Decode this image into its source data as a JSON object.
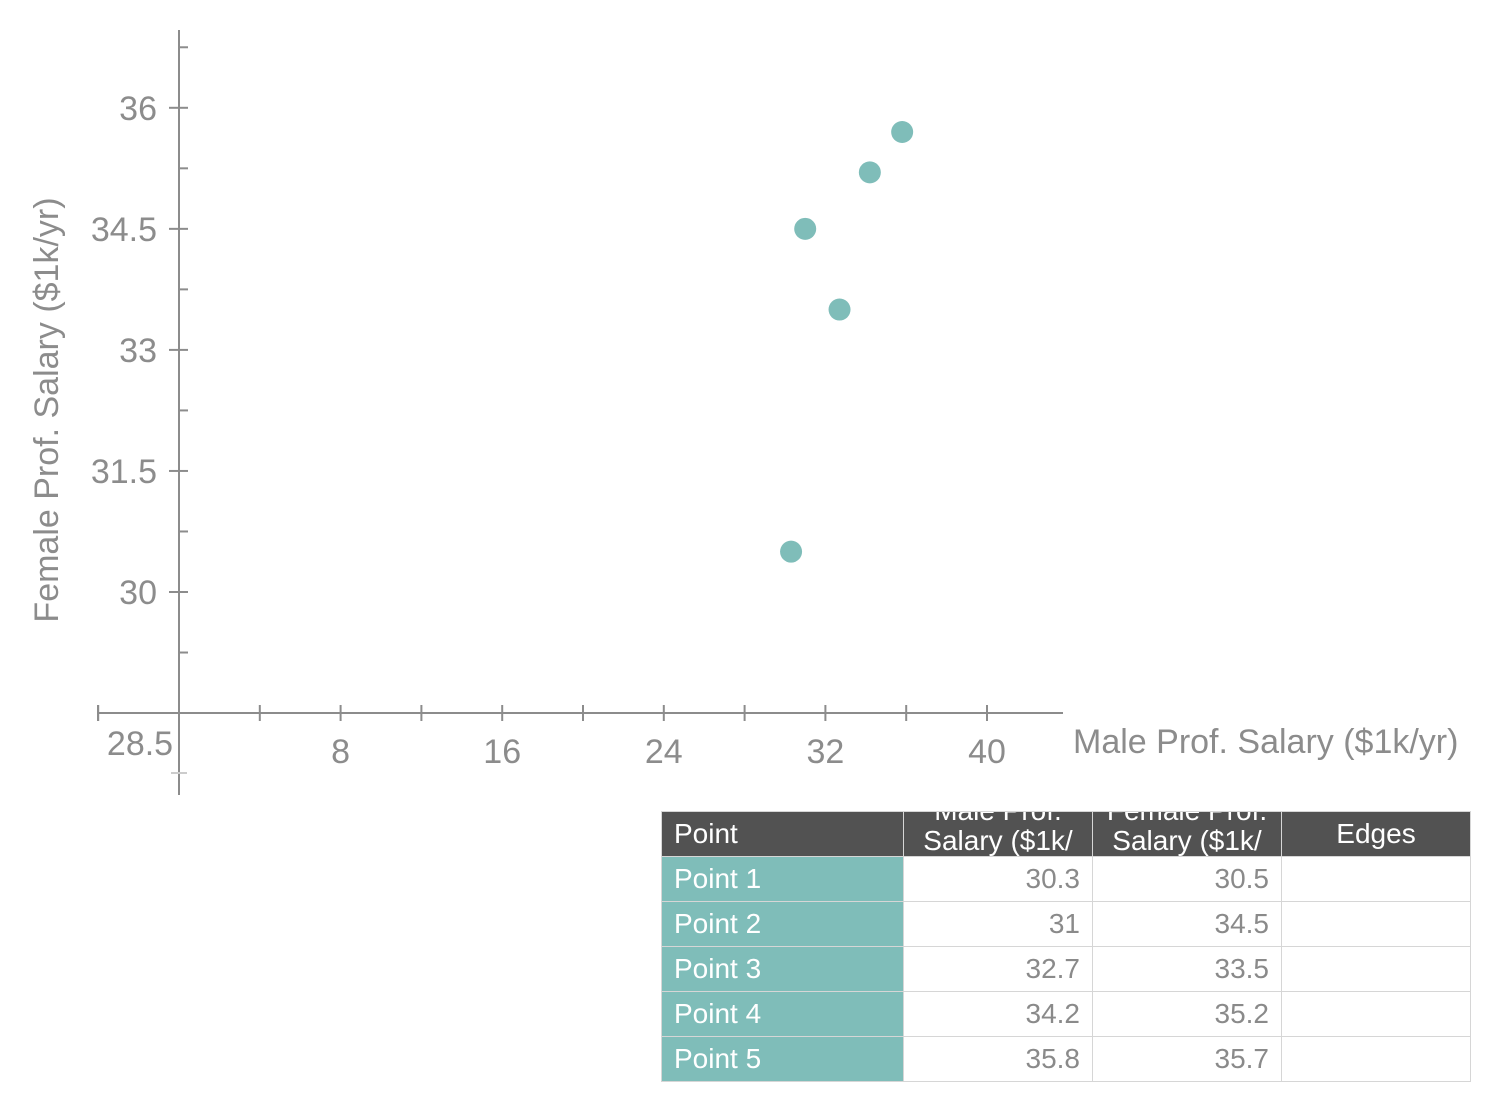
{
  "colors": {
    "marker": "#7fbdb9",
    "axis": "#8c8c8c",
    "header_bg": "#525252",
    "point_cell_bg": "#7fbdb9"
  },
  "chart_data": {
    "type": "scatter",
    "xlabel": "Male Prof. Salary ($1k/yr)",
    "ylabel": "Female Prof. Salary ($1k/yr)",
    "x_origin_label": "28.5",
    "x_ticks": [
      8,
      16,
      24,
      32,
      40
    ],
    "y_ticks": [
      30,
      31.5,
      33,
      34.5,
      36
    ],
    "xlim": [
      0,
      43
    ],
    "ylim": [
      28.5,
      37
    ],
    "grid": false,
    "points": [
      {
        "label": "Point 1",
        "x": 30.3,
        "y": 30.5
      },
      {
        "label": "Point 2",
        "x": 31,
        "y": 34.5
      },
      {
        "label": "Point 3",
        "x": 32.7,
        "y": 33.5
      },
      {
        "label": "Point 4",
        "x": 34.2,
        "y": 35.2
      },
      {
        "label": "Point 5",
        "x": 35.8,
        "y": 35.7
      }
    ]
  },
  "table": {
    "headers": {
      "point": "Point",
      "male_top": "Male Prof.",
      "male_bottom": "Salary ($1k/",
      "female_top": "Female Prof.",
      "female_bottom": "Salary ($1k/",
      "edges": "Edges"
    },
    "rows": [
      {
        "point": "Point 1",
        "male": "30.3",
        "female": "30.5",
        "edges": ""
      },
      {
        "point": "Point 2",
        "male": "31",
        "female": "34.5",
        "edges": ""
      },
      {
        "point": "Point 3",
        "male": "32.7",
        "female": "33.5",
        "edges": ""
      },
      {
        "point": "Point 4",
        "male": "34.2",
        "female": "35.2",
        "edges": ""
      },
      {
        "point": "Point 5",
        "male": "35.8",
        "female": "35.7",
        "edges": ""
      }
    ]
  }
}
